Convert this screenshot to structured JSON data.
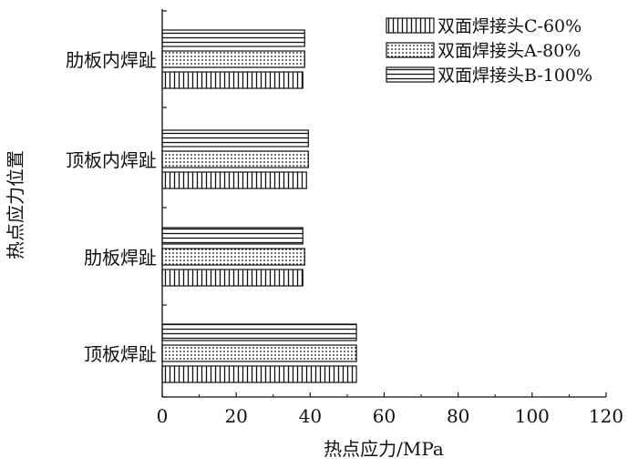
{
  "chart_data": {
    "type": "bar",
    "orientation": "horizontal",
    "title": "",
    "xlabel": "热点应力/MPa",
    "ylabel": "热点应力位置",
    "xlim": [
      0,
      120
    ],
    "xticks": [
      0,
      20,
      40,
      60,
      80,
      100,
      120
    ],
    "grid": false,
    "legend_position": "top-right",
    "categories": [
      "顶板焊趾",
      "肋板焊趾",
      "顶板内焊趾",
      "肋板内焊趾"
    ],
    "series": [
      {
        "name": "双面焊接头C-60%",
        "pattern": "vertical-stripes",
        "values": [
          52.5,
          38.0,
          39.0,
          38.0
        ]
      },
      {
        "name": "双面焊接头A-80%",
        "pattern": "dots",
        "values": [
          52.5,
          38.5,
          39.5,
          38.5
        ]
      },
      {
        "name": "双面焊接头B-100%",
        "pattern": "horizontal-stripes",
        "values": [
          52.5,
          38.0,
          39.5,
          38.5
        ]
      }
    ],
    "colors": {
      "ink": "#111111",
      "background": "#ffffff"
    }
  }
}
